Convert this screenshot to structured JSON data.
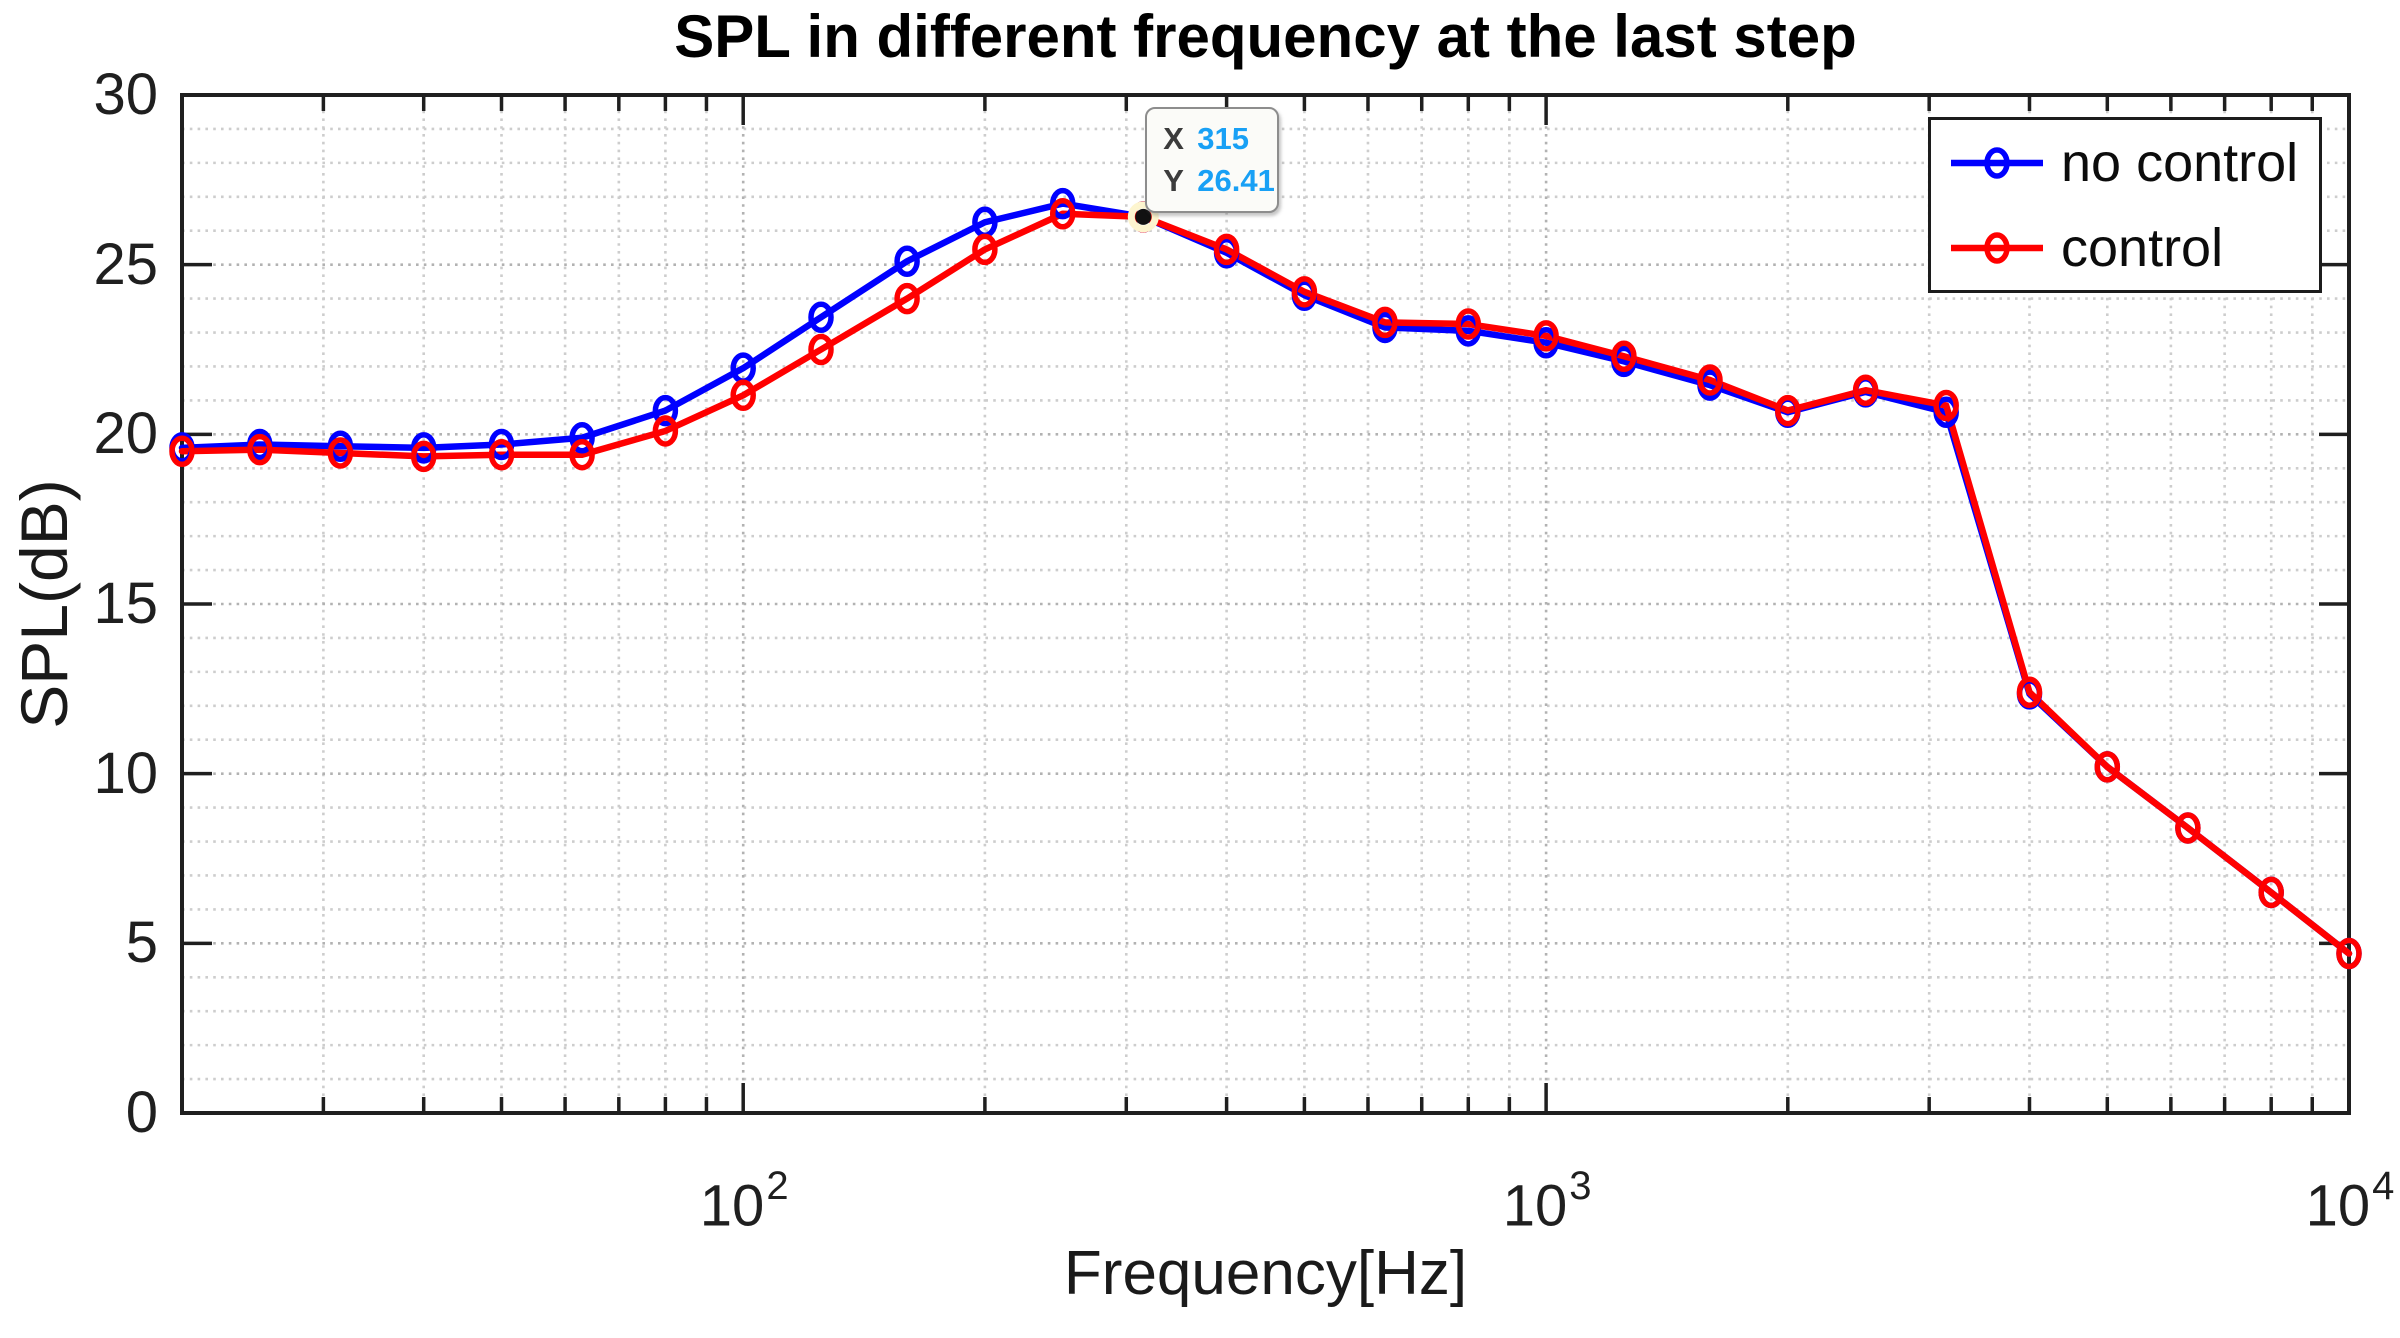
{
  "title": "SPL in different frequency at the last step",
  "xlabel": "Frequency[Hz]",
  "ylabel": "SPL(dB)",
  "legend": [
    {
      "label": "no control",
      "color": "#0000ff"
    },
    {
      "label": "control",
      "color": "#ff0000"
    }
  ],
  "datatip": {
    "x_label": "X",
    "x_value": "315",
    "y_label": "Y",
    "y_value": "26.41",
    "value_color": "#18a0f5",
    "anchor_freq": 315,
    "anchor_spl": 26.41
  },
  "axes": {
    "y_tick_labels": [
      "0",
      "5",
      "10",
      "15",
      "20",
      "25",
      "30"
    ],
    "y_tick_values": [
      0,
      5,
      10,
      15,
      20,
      25,
      30
    ],
    "x_tick_labels": [
      {
        "base": "10",
        "exp": "2",
        "value": 100
      },
      {
        "base": "10",
        "exp": "3",
        "value": 1000
      },
      {
        "base": "10",
        "exp": "4",
        "value": 10000
      }
    ],
    "grid_minor_color": "#cdcdcd",
    "grid_major_color": "#b2b2b2",
    "axis_color": "#1f1f1f"
  },
  "chart_data": {
    "type": "line",
    "x_scale": "log",
    "title": "SPL in different frequency at the last step",
    "xlabel": "Frequency[Hz]",
    "ylabel": "SPL(dB)",
    "xlim": [
      20,
      10000
    ],
    "ylim": [
      0,
      30
    ],
    "grid": "major and minor dotted grid on, legend top-right",
    "x": [
      20,
      25,
      31.5,
      40,
      50,
      63,
      80,
      100,
      125,
      160,
      200,
      250,
      315,
      400,
      500,
      630,
      800,
      1000,
      1250,
      1600,
      2000,
      2500,
      3150,
      4000,
      5000,
      6300,
      8000,
      10000
    ],
    "series": [
      {
        "name": "no control",
        "color": "#0000ff",
        "marker": "o",
        "values": [
          19.6,
          19.7,
          19.65,
          19.6,
          19.7,
          19.9,
          20.7,
          21.95,
          23.45,
          25.1,
          26.25,
          26.8,
          26.41,
          25.35,
          24.1,
          23.15,
          23.05,
          22.7,
          22.15,
          21.45,
          20.65,
          21.25,
          20.65,
          12.35,
          10.2,
          8.4,
          6.5,
          4.7
        ]
      },
      {
        "name": "control",
        "color": "#ff0000",
        "marker": "o",
        "values": [
          19.5,
          19.55,
          19.45,
          19.35,
          19.4,
          19.4,
          20.1,
          21.15,
          22.5,
          24.0,
          25.45,
          26.5,
          26.41,
          25.45,
          24.2,
          23.3,
          23.25,
          22.9,
          22.3,
          21.6,
          20.7,
          21.3,
          20.85,
          12.4,
          10.2,
          8.4,
          6.5,
          4.7
        ]
      }
    ],
    "annotation": {
      "type": "datatip",
      "x": 315,
      "y": 26.41
    }
  }
}
